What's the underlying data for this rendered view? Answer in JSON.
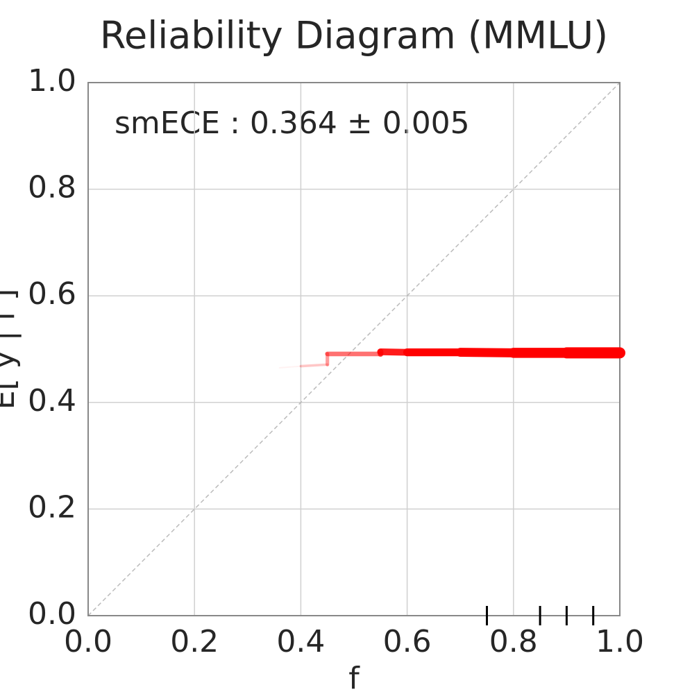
{
  "chart_data": {
    "type": "line",
    "title": "Reliability Diagram (MMLU)",
    "xlabel": "f",
    "ylabel": "E[ y | f ]",
    "annotation": "smECE : 0.364 ± 0.005",
    "x": [
      0.36,
      0.4,
      0.45,
      0.45,
      0.55,
      0.55,
      0.6,
      0.7,
      0.8,
      0.9,
      1.0
    ],
    "series": [
      {
        "color": "#ff0000",
        "values": [
          0.465,
          0.468,
          0.471,
          0.491,
          0.491,
          0.495,
          0.494,
          0.494,
          0.493,
          0.493,
          0.493
        ]
      }
    ],
    "rug": [
      0.75,
      0.85,
      0.9,
      0.95
    ],
    "xlim": [
      0,
      1
    ],
    "ylim": [
      0,
      1
    ],
    "xticks": [
      {
        "value": 0,
        "label": "0.0"
      },
      0.2,
      0.4,
      0.6,
      0.8,
      {
        "value": 1,
        "label": "1.0"
      }
    ],
    "yticks": [
      {
        "value": 0,
        "label": "0.0"
      },
      0.2,
      0.4,
      0.6,
      0.8,
      {
        "value": 1,
        "label": "1.0"
      }
    ],
    "grid": true
  }
}
